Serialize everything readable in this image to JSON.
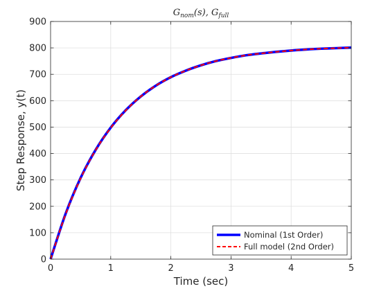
{
  "chart_data": {
    "type": "line",
    "title": "Gnom(s), Gfull",
    "title_parts": {
      "g1": "G",
      "sub1": "nom",
      "mid": "(s), ",
      "g2": "G",
      "sub2": "full"
    },
    "xlabel": "Time (sec)",
    "ylabel": "Step Response, y(t)",
    "xlim": [
      0,
      5
    ],
    "ylim": [
      0,
      900
    ],
    "xticks": [
      0,
      1,
      2,
      3,
      4,
      5
    ],
    "yticks": [
      0,
      100,
      200,
      300,
      400,
      500,
      600,
      700,
      800,
      900
    ],
    "grid": true,
    "legend_position": "bottom-right",
    "x": [
      0,
      0.25,
      0.5,
      0.75,
      1.0,
      1.25,
      1.5,
      1.75,
      2.0,
      2.25,
      2.5,
      2.75,
      3.0,
      3.25,
      3.5,
      3.75,
      4.0,
      4.25,
      4.5,
      4.75,
      5.0
    ],
    "series": [
      {
        "name": "Nominal (1st Order)",
        "color": "#0000ff",
        "style": "solid",
        "values": [
          0,
          172,
          308,
          414,
          498,
          564,
          616,
          657,
          689,
          714,
          734,
          750,
          762,
          772,
          779,
          785,
          790,
          794,
          797,
          799,
          801
        ]
      },
      {
        "name": "Full model (2nd Order)",
        "color": "#ff0000",
        "style": "dashed",
        "values": [
          0,
          170,
          306,
          413,
          497,
          563,
          616,
          657,
          689,
          714,
          734,
          750,
          762,
          772,
          779,
          785,
          790,
          794,
          797,
          799,
          801
        ]
      }
    ]
  }
}
